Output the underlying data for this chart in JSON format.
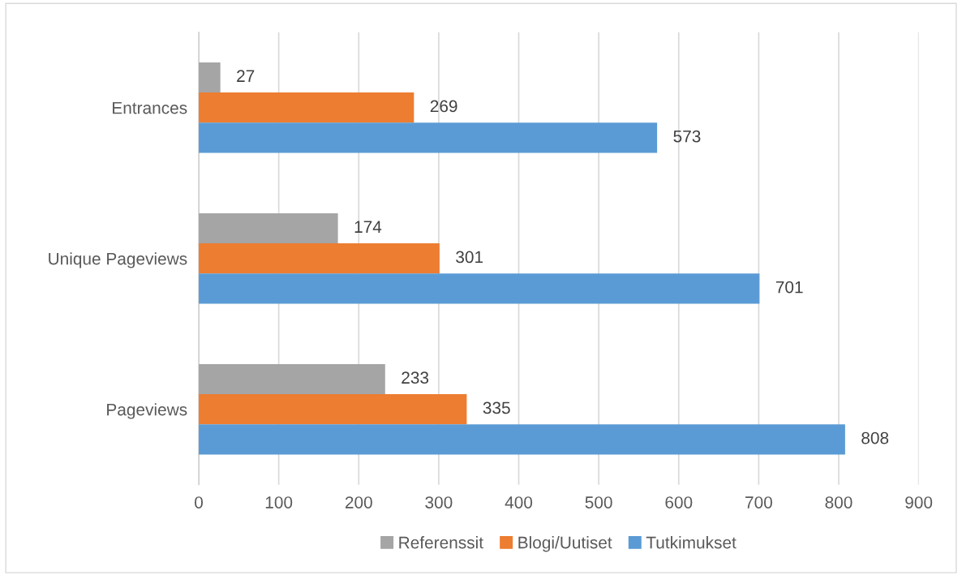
{
  "chart_data": {
    "type": "bar",
    "orientation": "horizontal",
    "categories": [
      "Entrances",
      "Unique Pageviews",
      "Pageviews"
    ],
    "series": [
      {
        "name": "Referenssit",
        "color": "#a5a5a5",
        "values": [
          27,
          174,
          233
        ]
      },
      {
        "name": "Blogi/Uutiset",
        "color": "#ed7d31",
        "values": [
          269,
          301,
          335
        ]
      },
      {
        "name": "Tutkimukset",
        "color": "#5b9bd5",
        "values": [
          573,
          701,
          808
        ]
      }
    ],
    "xlim": [
      0,
      900
    ],
    "xticks": [
      0,
      100,
      200,
      300,
      400,
      500,
      600,
      700,
      800,
      900
    ],
    "grid": "x",
    "legend": "bottom",
    "data_labels": true
  }
}
